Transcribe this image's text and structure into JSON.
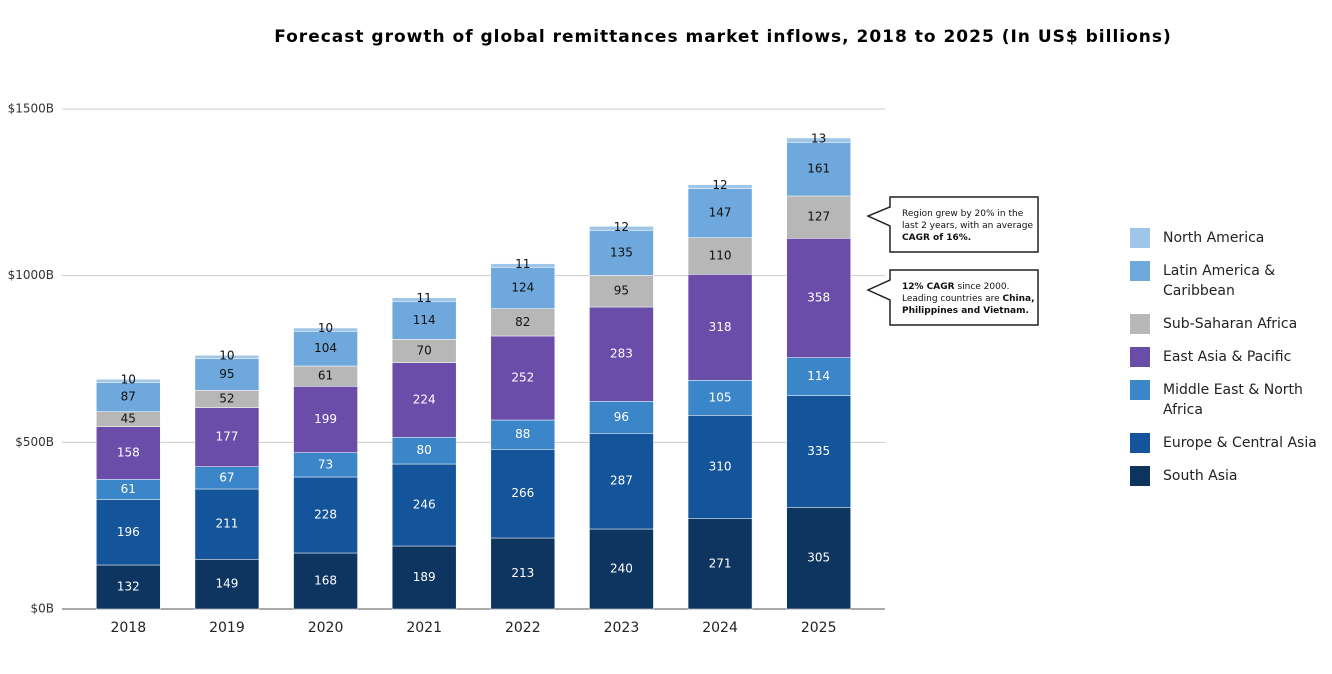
{
  "chart_data": {
    "type": "stacked_bar",
    "title": "Forecast growth of global remittances market inflows, 2018 to 2025 (In US$ billions)",
    "categories": [
      "2018",
      "2019",
      "2020",
      "2021",
      "2022",
      "2023",
      "2024",
      "2025"
    ],
    "series": [
      {
        "name": "South Asia",
        "color": "#0d355f",
        "values": [
          132,
          149,
          168,
          189,
          213,
          240,
          271,
          305
        ]
      },
      {
        "name": "Europe & Central Asia",
        "color": "#13549a",
        "values": [
          196,
          211,
          228,
          246,
          266,
          287,
          310,
          335
        ]
      },
      {
        "name": "Middle East & North Africa",
        "color": "#3a86c9",
        "values": [
          61,
          67,
          73,
          80,
          88,
          96,
          105,
          114
        ]
      },
      {
        "name": "East Asia & Pacific",
        "color": "#6a4ca9",
        "values": [
          158,
          177,
          199,
          224,
          252,
          283,
          318,
          358
        ]
      },
      {
        "name": "Sub-Saharan Africa",
        "color": "#b7b7b7",
        "values": [
          45,
          52,
          61,
          70,
          82,
          95,
          110,
          127
        ]
      },
      {
        "name": "Latin America & Caribbean",
        "color": "#6fa8dc",
        "values": [
          87,
          95,
          104,
          114,
          124,
          135,
          147,
          161
        ]
      },
      {
        "name": "North America",
        "color": "#9fc5e8",
        "values": [
          10,
          10,
          10,
          11,
          11,
          12,
          12,
          13
        ]
      }
    ],
    "ylim": [
      0,
      1500
    ],
    "yticks": [
      {
        "value": 0,
        "label": "$0B"
      },
      {
        "value": 500,
        "label": "$500B"
      },
      {
        "value": 1000,
        "label": "$1000B"
      },
      {
        "value": 1500,
        "label": "$1500B"
      }
    ],
    "grid": true,
    "legend": "right",
    "annotations": [
      {
        "runs": [
          {
            "text": "Region grew by 20% in the last 2 years, with an average ",
            "bold": false
          },
          {
            "text": "CAGR of 16%.",
            "bold": true
          }
        ]
      },
      {
        "runs": [
          {
            "text": "12% CAGR",
            "bold": true
          },
          {
            "text": " since 2000. Leading countries are ",
            "bold": false
          },
          {
            "text": "China, Philippines and Vietnam.",
            "bold": true
          }
        ]
      }
    ]
  }
}
